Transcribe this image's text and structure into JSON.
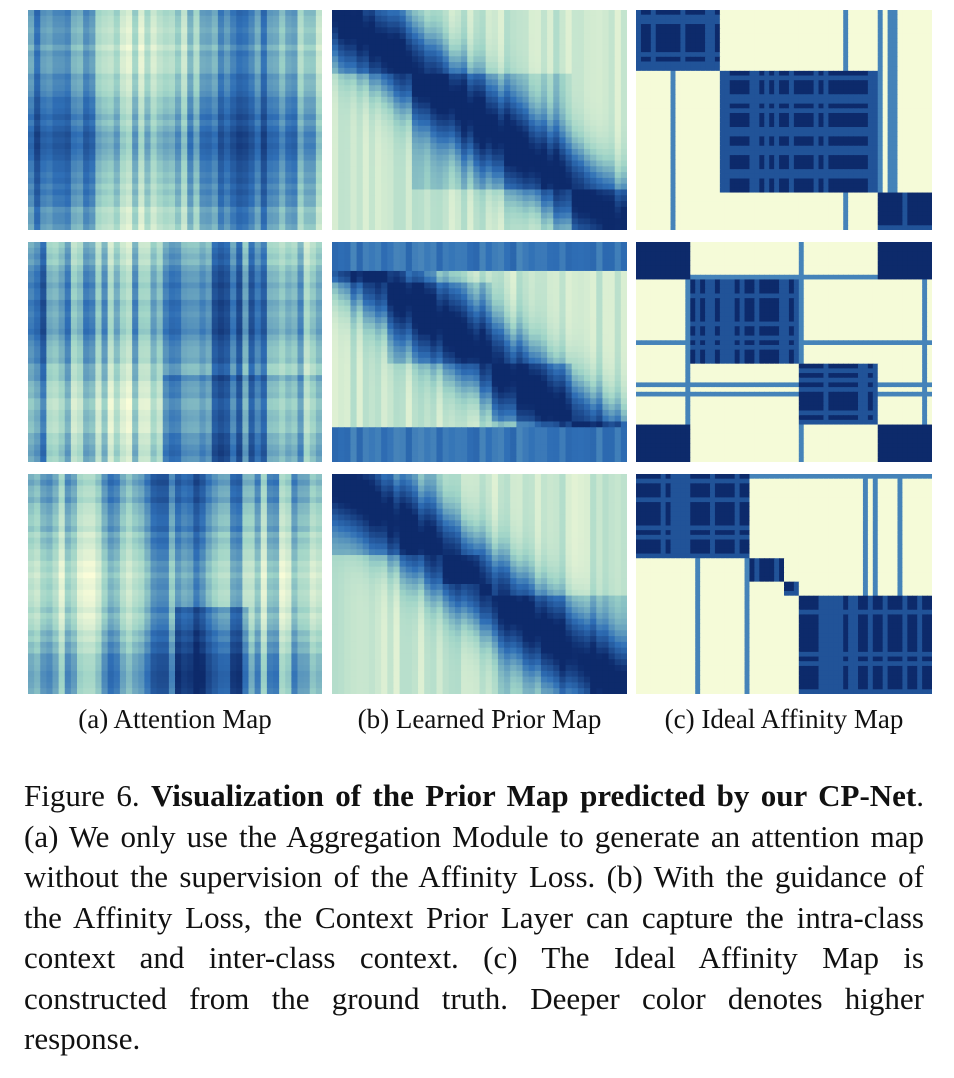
{
  "columns": [
    {
      "id": "a",
      "label": "(a) Attention Map"
    },
    {
      "id": "b",
      "label": "(b) Learned Prior Map"
    },
    {
      "id": "c",
      "label": "(c) Ideal Affinity Map"
    }
  ],
  "rows": 3,
  "caption": {
    "figure_label": "Figure 6.",
    "title": "Visualization of the Prior Map predicted by our CP-Net",
    "body": ". (a) We only use the Aggregation Module to generate an attention map without the supervision of the Affinity Loss. (b) With the guidance of the Affinity Loss, the Context Prior Layer can capture the intra-class context and inter-class context. (c) The Ideal Affinity Map is constructed from the ground truth. Deeper color denotes higher response."
  },
  "colors": {
    "deep": "#0d2a6b",
    "mid": "#2f6fb6",
    "light": "#9fd4c7",
    "pale": "#fbfdd9"
  }
}
